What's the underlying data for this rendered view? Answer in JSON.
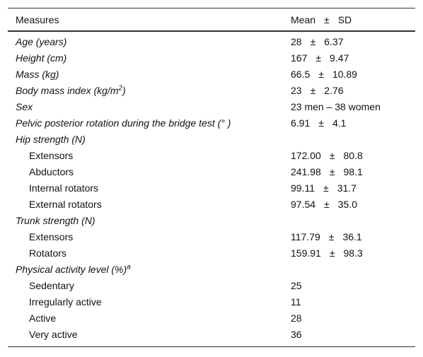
{
  "table": {
    "header": [
      "Measures",
      "Mean",
      "±",
      "SD"
    ],
    "rows": [
      {
        "label": "Age (years)",
        "mean": "28",
        "pm": "±",
        "sd": "6.37"
      },
      {
        "label": "Height (cm)",
        "mean": "167",
        "pm": "±",
        "sd": "9.47"
      },
      {
        "label": "Mass (kg)",
        "mean": "66.5",
        "pm": "±",
        "sd": "10.89"
      },
      {
        "label": "Body mass index (kg/m",
        "sup": "2",
        "label_end": ")",
        "mean": "23",
        "pm": "±",
        "sd": "2.76"
      },
      {
        "label": "Sex",
        "value": "23 men – 38 women"
      },
      {
        "label": "Pelvic posterior rotation during the bridge test (° )",
        "mean": "6.91",
        "pm": "±",
        "sd": "4.1"
      },
      {
        "label": "Hip strength (N)",
        "items": [
          {
            "label": "Extensors",
            "mean": "172.00",
            "pm": "±",
            "sd": "80.8"
          },
          {
            "label": "Abductors",
            "mean": "241.98",
            "pm": "±",
            "sd": "98.1"
          },
          {
            "label": "Internal rotators",
            "mean": "99.11",
            "pm": "±",
            "sd": "31.7"
          },
          {
            "label": "External rotators",
            "mean": "97.54",
            "pm": "±",
            "sd": "35.0"
          }
        ]
      },
      {
        "label": "Trunk strength (N)",
        "items": [
          {
            "label": "Extensors",
            "mean": "117.79",
            "pm": "±",
            "sd": "36.1"
          },
          {
            "label": "Rotators",
            "mean": "159.91",
            "pm": "±",
            "sd": "98.3"
          }
        ]
      },
      {
        "label": "Physical activity level (%)",
        "sup": "a",
        "items": [
          {
            "label": "Sedentary",
            "value": "25"
          },
          {
            "label": "Irregularly active",
            "value": "11"
          },
          {
            "label": "Active",
            "value": "28"
          },
          {
            "label": "Very active",
            "value": "36"
          }
        ]
      }
    ]
  }
}
